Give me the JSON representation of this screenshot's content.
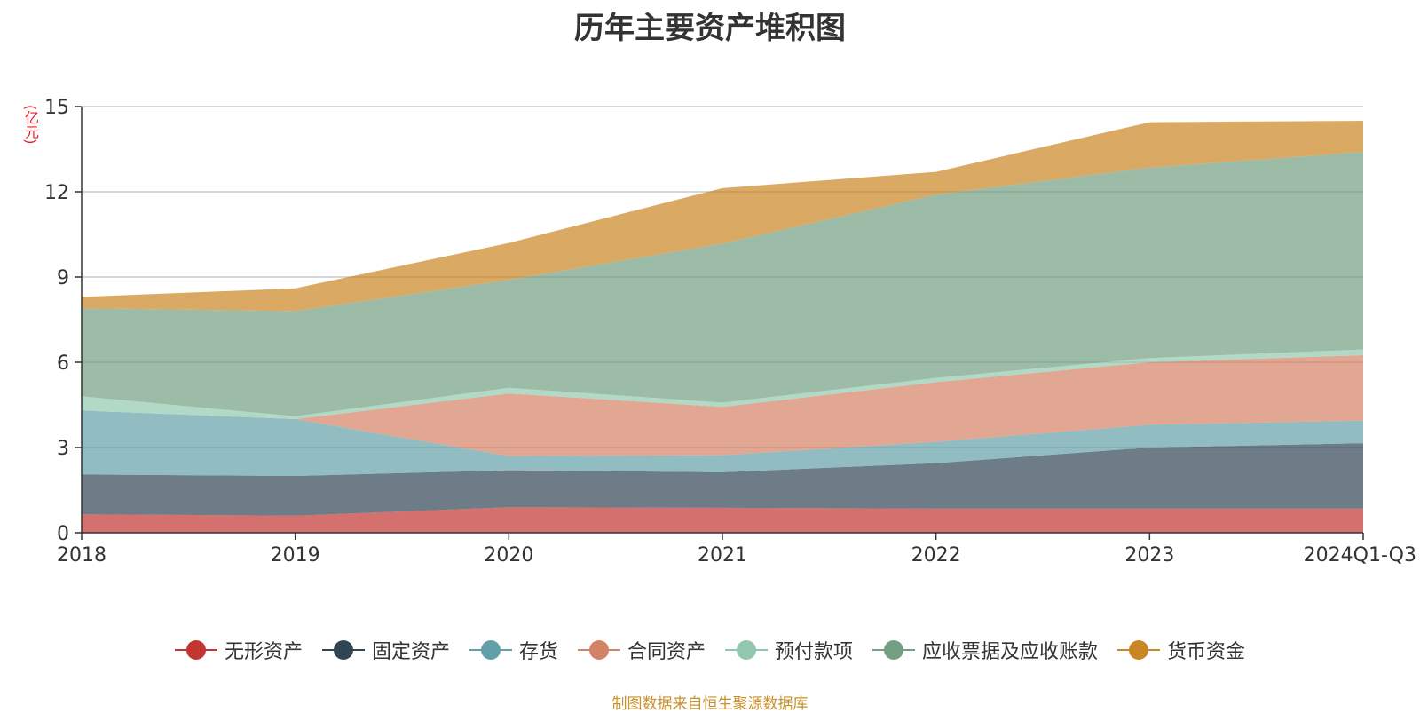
{
  "chart_data": {
    "type": "area",
    "title": "历年主要资产堆积图",
    "unit_label": "(亿元)",
    "categories": [
      "2018",
      "2019",
      "2020",
      "2021",
      "2022",
      "2023",
      "2024Q1-Q3"
    ],
    "ylim": [
      0,
      15
    ],
    "yticks": [
      0,
      3,
      6,
      9,
      12,
      15
    ],
    "grid": true,
    "legend_position": "bottom",
    "series": [
      {
        "name": "无形资产",
        "color": "#c23531",
        "values": [
          0.65,
          0.6,
          0.9,
          0.88,
          0.85,
          0.85,
          0.85
        ]
      },
      {
        "name": "固定资产",
        "color": "#2f4554",
        "values": [
          1.4,
          1.4,
          1.3,
          1.25,
          1.6,
          2.15,
          2.3
        ]
      },
      {
        "name": "存货",
        "color": "#61a0a8",
        "values": [
          2.25,
          2.0,
          0.5,
          0.6,
          0.75,
          0.8,
          0.8
        ]
      },
      {
        "name": "合同资产",
        "color": "#d48265",
        "values": [
          0.0,
          0.0,
          2.2,
          1.7,
          2.1,
          2.2,
          2.3
        ]
      },
      {
        "name": "预付款项",
        "color": "#91c7ae",
        "values": [
          0.5,
          0.1,
          0.2,
          0.15,
          0.15,
          0.15,
          0.2
        ]
      },
      {
        "name": "应收票据及应收账款",
        "color": "#749f83",
        "values": [
          3.1,
          3.7,
          3.8,
          5.6,
          6.45,
          6.7,
          6.95
        ]
      },
      {
        "name": "货币资金",
        "color": "#ca8622",
        "values": [
          0.4,
          0.8,
          1.3,
          1.95,
          0.8,
          1.6,
          1.1
        ]
      }
    ]
  },
  "footer": {
    "source": "制图数据来自恒生聚源数据库"
  }
}
